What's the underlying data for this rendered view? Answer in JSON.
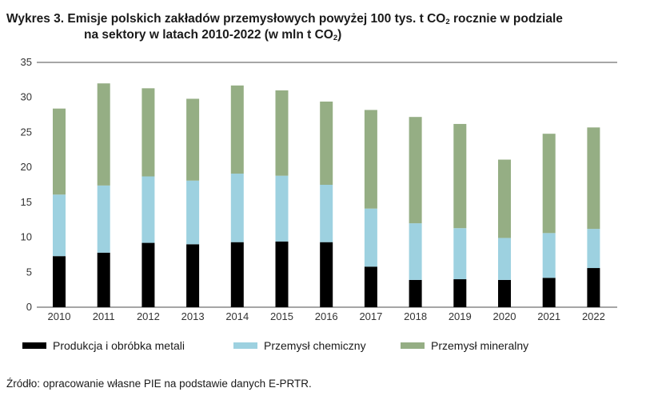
{
  "title": {
    "prefix": "Wykres 3.",
    "line1_a": "Emisje polskich zakładów przemysłowych powyżej 100 tys. t CO",
    "sub": "2",
    "line1_b": " rocznie w podziale",
    "line2_a": "na sektory w latach 2010-2022 (w mln t CO",
    "line2_b": ")"
  },
  "source": "Źródło: opracowanie własne PIE na podstawie danych E-PRTR.",
  "colors": {
    "metal": "#000000",
    "chem": "#9dd1e0",
    "mineral": "#95ae84",
    "gridline": "#4d4d4d",
    "axis_text": "#333333"
  },
  "chart_data": {
    "type": "bar",
    "stacked": true,
    "title": "Emisje polskich zakładów przemysłowych powyżej 100 tys. t CO2 rocznie w podziale na sektory w latach 2010-2022 (w mln t CO2)",
    "categories": [
      "2010",
      "2011",
      "2012",
      "2013",
      "2014",
      "2015",
      "2016",
      "2017",
      "2018",
      "2019",
      "2020",
      "2021",
      "2022"
    ],
    "series": [
      {
        "name": "Produkcja i obróbka metali",
        "color": "#000000",
        "values": [
          7.3,
          7.8,
          9.2,
          9.0,
          9.3,
          9.4,
          9.3,
          5.8,
          3.9,
          4.0,
          3.9,
          4.2,
          5.6
        ]
      },
      {
        "name": "Przemysł chemiczny",
        "color": "#9dd1e0",
        "values": [
          8.8,
          9.6,
          9.5,
          9.1,
          9.8,
          9.4,
          8.2,
          8.3,
          8.1,
          7.3,
          6.0,
          6.4,
          5.6
        ]
      },
      {
        "name": "Przemysł mineralny",
        "color": "#95ae84",
        "values": [
          12.3,
          14.6,
          12.6,
          11.7,
          12.6,
          12.2,
          11.9,
          14.1,
          15.2,
          14.9,
          11.2,
          14.2,
          14.5
        ]
      }
    ],
    "yticks": [
      0,
      5,
      10,
      15,
      20,
      25,
      30,
      35
    ],
    "ylim": [
      0,
      35
    ],
    "xlabel": "",
    "ylabel": "",
    "grid": "top-line-only",
    "legend_position": "bottom"
  }
}
